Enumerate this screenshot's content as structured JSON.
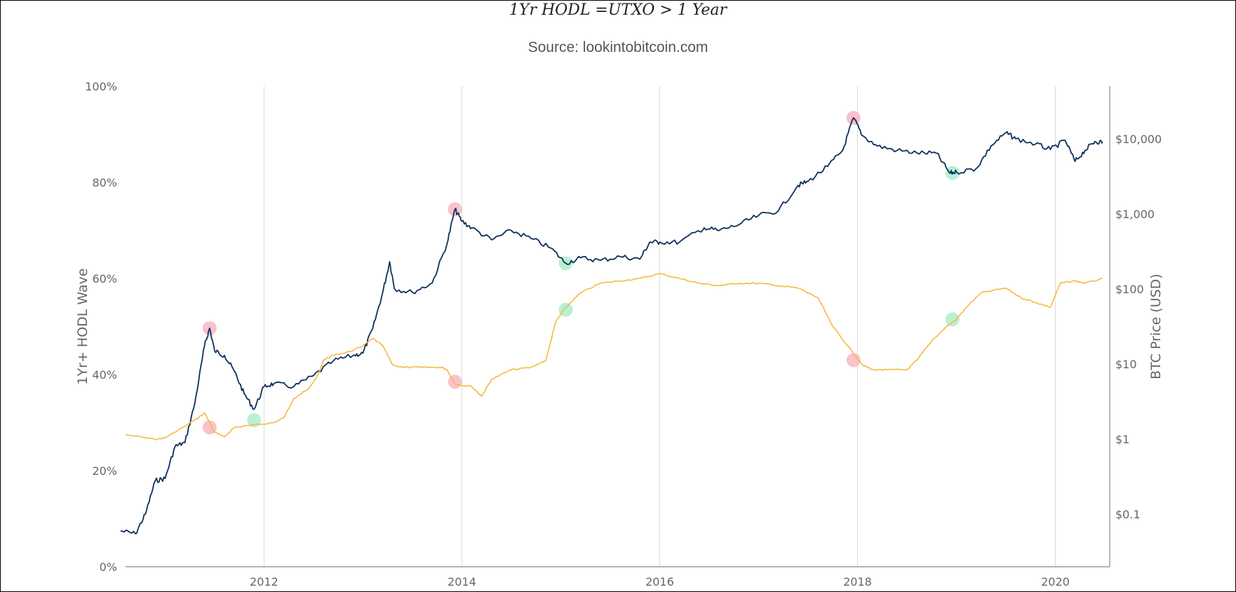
{
  "chart_data": {
    "type": "line",
    "title": "1Yr HODL =UTXO > 1 Year",
    "subtitle": "Source: lookintobitcoin.com",
    "left_axis": {
      "label": "1Yr+ HODL Wave",
      "range": [
        0,
        100
      ],
      "ticks": [
        0,
        20,
        40,
        60,
        80,
        100
      ],
      "tick_labels": [
        "0%",
        "20%",
        "40%",
        "60%",
        "80%",
        "100%"
      ]
    },
    "right_axis": {
      "label": "BTC Price (USD)",
      "scale": "log",
      "range": [
        0.02,
        50000
      ],
      "ticks": [
        0.1,
        1,
        10,
        100,
        1000,
        10000
      ],
      "tick_labels": [
        "$0.1",
        "$1",
        "$10",
        "$100",
        "$1,000",
        "$10,000"
      ]
    },
    "x_axis": {
      "range": [
        2010.6,
        2020.55
      ],
      "ticks": [
        2012,
        2014,
        2016,
        2018,
        2020
      ],
      "tick_labels": [
        "2012",
        "2014",
        "2016",
        "2018",
        "2020"
      ],
      "grid": true
    },
    "series": [
      {
        "axis": "right",
        "color": "#0d2f5c",
        "points": [
          [
            2010.55,
            0.06
          ],
          [
            2010.7,
            0.055
          ],
          [
            2010.8,
            0.1
          ],
          [
            2010.9,
            0.28
          ],
          [
            2011.0,
            0.3
          ],
          [
            2011.1,
            0.8
          ],
          [
            2011.2,
            0.9
          ],
          [
            2011.3,
            3.0
          ],
          [
            2011.4,
            18
          ],
          [
            2011.45,
            30
          ],
          [
            2011.5,
            15
          ],
          [
            2011.6,
            13
          ],
          [
            2011.7,
            8
          ],
          [
            2011.8,
            4
          ],
          [
            2011.9,
            2.5
          ],
          [
            2012.0,
            5
          ],
          [
            2012.1,
            5.5
          ],
          [
            2012.3,
            5
          ],
          [
            2012.5,
            7
          ],
          [
            2012.7,
            11
          ],
          [
            2012.9,
            13
          ],
          [
            2013.0,
            14
          ],
          [
            2013.1,
            30
          ],
          [
            2013.2,
            90
          ],
          [
            2013.27,
            230
          ],
          [
            2013.32,
            100
          ],
          [
            2013.5,
            90
          ],
          [
            2013.7,
            120
          ],
          [
            2013.85,
            400
          ],
          [
            2013.93,
            1150
          ],
          [
            2014.0,
            800
          ],
          [
            2014.1,
            650
          ],
          [
            2014.3,
            450
          ],
          [
            2014.5,
            600
          ],
          [
            2014.7,
            470
          ],
          [
            2014.9,
            350
          ],
          [
            2015.05,
            220
          ],
          [
            2015.2,
            260
          ],
          [
            2015.4,
            240
          ],
          [
            2015.6,
            270
          ],
          [
            2015.8,
            250
          ],
          [
            2015.9,
            420
          ],
          [
            2016.0,
            420
          ],
          [
            2016.2,
            420
          ],
          [
            2016.45,
            650
          ],
          [
            2016.6,
            600
          ],
          [
            2016.8,
            720
          ],
          [
            2017.0,
            950
          ],
          [
            2017.2,
            1100
          ],
          [
            2017.4,
            2400
          ],
          [
            2017.5,
            2700
          ],
          [
            2017.7,
            4300
          ],
          [
            2017.85,
            7000
          ],
          [
            2017.96,
            19000
          ],
          [
            2018.05,
            11000
          ],
          [
            2018.2,
            8000
          ],
          [
            2018.4,
            7000
          ],
          [
            2018.6,
            6500
          ],
          [
            2018.8,
            6400
          ],
          [
            2018.93,
            3500
          ],
          [
            2019.0,
            3600
          ],
          [
            2019.2,
            4000
          ],
          [
            2019.35,
            8000
          ],
          [
            2019.5,
            12000
          ],
          [
            2019.6,
            10000
          ],
          [
            2019.8,
            8500
          ],
          [
            2019.95,
            7200
          ],
          [
            2020.1,
            9500
          ],
          [
            2020.2,
            5000
          ],
          [
            2020.3,
            7000
          ],
          [
            2020.4,
            9200
          ],
          [
            2020.48,
            9000
          ]
        ]
      },
      {
        "axis": "left",
        "color": "#f5b942",
        "points": [
          [
            2010.6,
            27.5
          ],
          [
            2010.9,
            26.5
          ],
          [
            2011.0,
            26.8
          ],
          [
            2011.3,
            30.5
          ],
          [
            2011.4,
            32
          ],
          [
            2011.5,
            28
          ],
          [
            2011.6,
            27
          ],
          [
            2011.7,
            29
          ],
          [
            2011.9,
            29.5
          ],
          [
            2012.1,
            30
          ],
          [
            2012.2,
            31
          ],
          [
            2012.3,
            35
          ],
          [
            2012.45,
            37
          ],
          [
            2012.55,
            40
          ],
          [
            2012.6,
            43
          ],
          [
            2012.7,
            44
          ],
          [
            2012.9,
            45
          ],
          [
            2013.0,
            46
          ],
          [
            2013.1,
            47.5
          ],
          [
            2013.2,
            46
          ],
          [
            2013.3,
            42
          ],
          [
            2013.4,
            41.5
          ],
          [
            2013.6,
            41.5
          ],
          [
            2013.8,
            41.5
          ],
          [
            2013.85,
            41
          ],
          [
            2013.93,
            38
          ],
          [
            2014.1,
            37.5
          ],
          [
            2014.2,
            35.5
          ],
          [
            2014.3,
            39
          ],
          [
            2014.5,
            41
          ],
          [
            2014.7,
            41.5
          ],
          [
            2014.85,
            43
          ],
          [
            2014.95,
            51
          ],
          [
            2015.05,
            54
          ],
          [
            2015.2,
            57
          ],
          [
            2015.4,
            59
          ],
          [
            2015.6,
            59.5
          ],
          [
            2015.8,
            60
          ],
          [
            2016.0,
            61
          ],
          [
            2016.2,
            60
          ],
          [
            2016.4,
            59
          ],
          [
            2016.6,
            58.5
          ],
          [
            2016.8,
            59
          ],
          [
            2017.0,
            59
          ],
          [
            2017.2,
            58.5
          ],
          [
            2017.4,
            58
          ],
          [
            2017.6,
            56
          ],
          [
            2017.75,
            50
          ],
          [
            2017.9,
            46
          ],
          [
            2018.05,
            42
          ],
          [
            2018.15,
            41
          ],
          [
            2018.3,
            41
          ],
          [
            2018.5,
            41
          ],
          [
            2018.6,
            43
          ],
          [
            2018.75,
            47
          ],
          [
            2018.9,
            50
          ],
          [
            2019.0,
            51.5
          ],
          [
            2019.1,
            54
          ],
          [
            2019.25,
            57
          ],
          [
            2019.5,
            58
          ],
          [
            2019.65,
            56
          ],
          [
            2019.8,
            55
          ],
          [
            2019.95,
            54
          ],
          [
            2020.05,
            59
          ],
          [
            2020.2,
            59.5
          ],
          [
            2020.3,
            59
          ],
          [
            2020.48,
            60
          ]
        ]
      }
    ],
    "markers": [
      {
        "x": 2011.45,
        "axis": "right",
        "value": 30,
        "kind": "top",
        "color": "#f7b3bf"
      },
      {
        "x": 2011.45,
        "axis": "left",
        "value": 29,
        "kind": "top",
        "color": "#f7b3bf"
      },
      {
        "x": 2011.9,
        "axis": "left",
        "value": 30.5,
        "kind": "bottom",
        "color": "#a9ecc9"
      },
      {
        "x": 2013.93,
        "axis": "right",
        "value": 1150,
        "kind": "top",
        "color": "#f7b3bf"
      },
      {
        "x": 2013.93,
        "axis": "left",
        "value": 38.5,
        "kind": "top",
        "color": "#f7b3bf"
      },
      {
        "x": 2015.05,
        "axis": "right",
        "value": 220,
        "kind": "bottom",
        "color": "#a9ecc9"
      },
      {
        "x": 2015.05,
        "axis": "left",
        "value": 53.5,
        "kind": "bottom",
        "color": "#a9ecc9"
      },
      {
        "x": 2017.96,
        "axis": "right",
        "value": 19000,
        "kind": "top",
        "color": "#f7b3bf"
      },
      {
        "x": 2017.96,
        "axis": "left",
        "value": 43,
        "kind": "top",
        "color": "#f7b3bf"
      },
      {
        "x": 2018.96,
        "axis": "right",
        "value": 3500,
        "kind": "bottom",
        "color": "#a9ecc9"
      },
      {
        "x": 2018.96,
        "axis": "left",
        "value": 51.5,
        "kind": "bottom",
        "color": "#a9ecc9"
      }
    ]
  }
}
